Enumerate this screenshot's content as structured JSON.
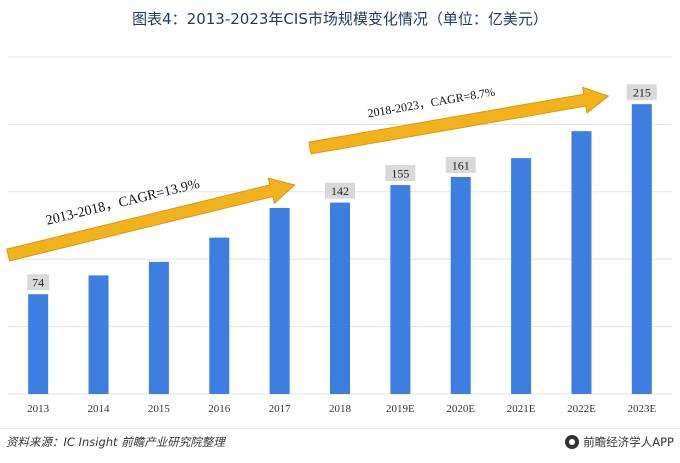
{
  "title": "图表4：2013-2023年CIS市场规模变化情况（单位：亿美元）",
  "source": "资料来源：IC Insight 前瞻产业研究院整理",
  "brand": "前瞻经济学人APP",
  "colors": {
    "bar": "#3d7fe0",
    "arrow": "#f2b21b",
    "arrow_stroke": "#d49a10",
    "label_bg": "#d9d9d9",
    "grid": "#e3e3e3",
    "title": "#1f3a5f"
  },
  "chart_data": {
    "type": "bar",
    "categories": [
      "2013",
      "2014",
      "2015",
      "2016",
      "2017",
      "2018",
      "2019E",
      "2020E",
      "2021E",
      "2022E",
      "2023E"
    ],
    "values": [
      74,
      88,
      98,
      116,
      138,
      142,
      155,
      161,
      175,
      195,
      215
    ],
    "value_labels": [
      "74",
      "",
      "",
      "",
      "",
      "142",
      "155",
      "161",
      "",
      "",
      "215"
    ],
    "ylim": [
      0,
      250
    ],
    "grid": true,
    "annotations": [
      {
        "text": "2013-2018，CAGR=13.9%",
        "from": "2013",
        "to": "2017"
      },
      {
        "text": "2018-2023，CAGR=8.7%",
        "from": "2018",
        "to": "2022E"
      }
    ]
  }
}
